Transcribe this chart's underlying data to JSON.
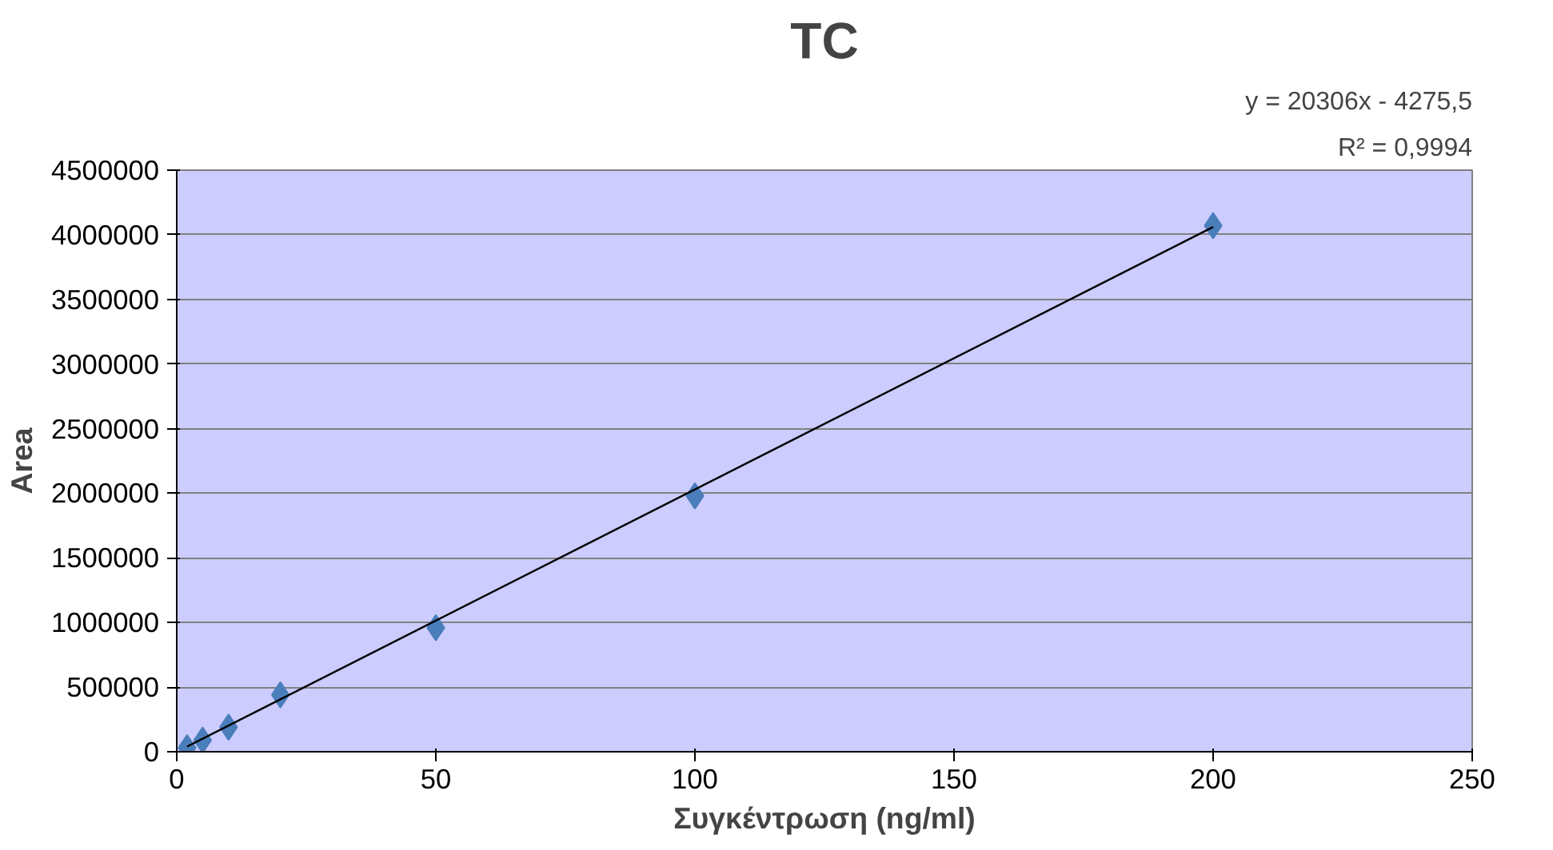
{
  "chart_data": {
    "type": "scatter",
    "title": "TC",
    "xlabel": "Συγκέντρωση (ng/ml)",
    "ylabel": "Area",
    "annotations": [
      "y = 20306x - 4275,5",
      "R² = 0,9994"
    ],
    "xlim": [
      0,
      250
    ],
    "xticks": [
      0,
      50,
      100,
      150,
      200,
      250
    ],
    "ylim": [
      0,
      4500000
    ],
    "yticks": [
      0,
      500000,
      1000000,
      1500000,
      2000000,
      2500000,
      3000000,
      3500000,
      4000000,
      4500000
    ],
    "grid": "y",
    "series": [
      {
        "marker": "diamond",
        "color": "#4a7ebb",
        "x": [
          2,
          5,
          10,
          20,
          50,
          100,
          200
        ],
        "values": [
          30000,
          90000,
          190000,
          440000,
          960000,
          1980000,
          4070000
        ]
      },
      {
        "type": "line",
        "color": "#000000",
        "line_style": "solid",
        "x": [
          2,
          200
        ],
        "values": [
          40000,
          4060000
        ]
      }
    ]
  }
}
